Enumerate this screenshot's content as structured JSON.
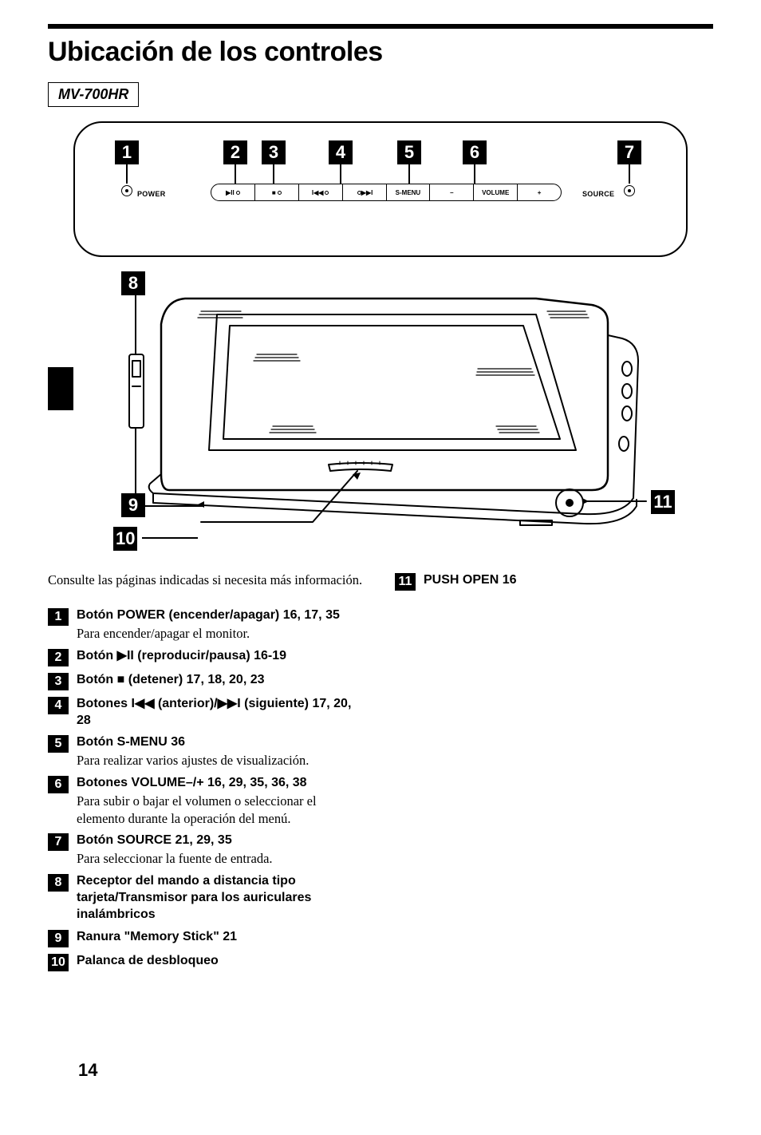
{
  "page": {
    "title": "Ubicación de los controles",
    "model": "MV-700HR",
    "page_number": "14"
  },
  "panel": {
    "callouts": [
      "1",
      "2",
      "3",
      "4",
      "5",
      "6",
      "7"
    ],
    "power_label": "POWER",
    "source_label": "SOURCE",
    "btn_smenu": "S-MENU",
    "btn_minus": "–",
    "btn_vol": "VOLUME",
    "btn_plus": "+"
  },
  "device_callouts": {
    "c8": "8",
    "c9": "9",
    "c10": "10",
    "c11": "11"
  },
  "intro": "Consulte las páginas indicadas si necesita más información.",
  "items_left": [
    {
      "n": "1",
      "head": "Botón POWER (encender/apagar) 16, 17, 35",
      "desc": "Para encender/apagar el monitor."
    },
    {
      "n": "2",
      "head": "Botón ▶II (reproducir/pausa) 16-19",
      "desc": ""
    },
    {
      "n": "3",
      "head": "Botón ■ (detener) 17, 18, 20, 23",
      "desc": ""
    },
    {
      "n": "4",
      "head": "Botones I◀◀ (anterior)/▶▶I (siguiente) 17, 20, 28",
      "desc": ""
    },
    {
      "n": "5",
      "head": "Botón S-MENU 36",
      "desc": "Para realizar varios ajustes de visualización."
    },
    {
      "n": "6",
      "head": "Botones VOLUME–/+ 16, 29, 35, 36, 38",
      "desc": "Para subir o bajar el volumen o seleccionar el elemento durante la operación del menú."
    },
    {
      "n": "7",
      "head": "Botón SOURCE 21, 29, 35",
      "desc": "Para seleccionar la fuente de entrada."
    },
    {
      "n": "8",
      "head": "Receptor del mando a distancia tipo tarjeta/Transmisor para los auriculares inalámbricos",
      "desc": ""
    },
    {
      "n": "9",
      "head": "Ranura \"Memory Stick\" 21",
      "desc": ""
    },
    {
      "n": "10",
      "head": "Palanca de desbloqueo",
      "desc": ""
    }
  ],
  "items_right": [
    {
      "n": "11",
      "head": "PUSH OPEN 16",
      "desc": ""
    }
  ]
}
